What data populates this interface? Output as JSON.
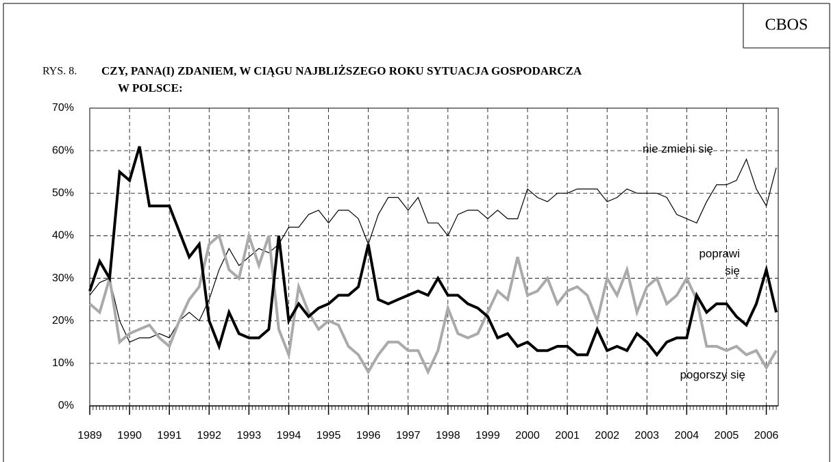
{
  "chart_data": {
    "type": "line",
    "source": "CBOS",
    "figure_label": "RYS. 8.",
    "title": [
      "CZY, PANA(I) ZDANIEM, W CIĄGU NAJBLIŻSZEGO ROKU SYTUACJA GOSPODARCZA",
      "W POLSCE:"
    ],
    "x": [
      1989.0,
      1989.25,
      1989.5,
      1989.75,
      1990.0,
      1990.25,
      1990.5,
      1990.75,
      1991.0,
      1991.25,
      1991.5,
      1991.75,
      1992.0,
      1992.25,
      1992.5,
      1992.75,
      1993.0,
      1993.25,
      1993.5,
      1993.75,
      1994.0,
      1994.25,
      1994.5,
      1994.75,
      1995.0,
      1995.25,
      1995.5,
      1995.75,
      1996.0,
      1996.25,
      1996.5,
      1996.75,
      1997.0,
      1997.25,
      1997.5,
      1997.75,
      1998.0,
      1998.25,
      1998.5,
      1998.75,
      1999.0,
      1999.25,
      1999.5,
      1999.75,
      2000.0,
      2000.25,
      2000.5,
      2000.75,
      2001.0,
      2001.25,
      2001.5,
      2001.75,
      2002.0,
      2002.25,
      2002.5,
      2002.75,
      2003.0,
      2003.25,
      2003.5,
      2003.75,
      2004.0,
      2004.25,
      2004.5,
      2004.75,
      2005.0,
      2005.25,
      2005.5,
      2005.75,
      2006.0,
      2006.25
    ],
    "series": [
      {
        "name": "nie zmieni się",
        "color": "#000000",
        "values": [
          26,
          29,
          30,
          20,
          15,
          16,
          16,
          17,
          16,
          20,
          22,
          20,
          25,
          32,
          37,
          33,
          35,
          37,
          36,
          38,
          42,
          42,
          45,
          46,
          43,
          46,
          46,
          44,
          38,
          45,
          49,
          49,
          46,
          49,
          43,
          43,
          40,
          45,
          46,
          46,
          44,
          46,
          44,
          44,
          51,
          49,
          48,
          50,
          50,
          51,
          51,
          51,
          48,
          49,
          51,
          50,
          50,
          50,
          49,
          45,
          44,
          43,
          48,
          52,
          52,
          53,
          58,
          51,
          47,
          56
        ]
      },
      {
        "name": "pogorszy się",
        "color": "#aaaaaa",
        "values": [
          24,
          22,
          30,
          15,
          17,
          18,
          19,
          16,
          14,
          20,
          25,
          28,
          38,
          40,
          32,
          30,
          40,
          33,
          40,
          18,
          12,
          28,
          22,
          18,
          20,
          19,
          14,
          12,
          8,
          12,
          15,
          15,
          13,
          13,
          8,
          13,
          23,
          17,
          16,
          17,
          22,
          27,
          25,
          35,
          26,
          27,
          30,
          24,
          27,
          28,
          26,
          20,
          30,
          26,
          32,
          22,
          28,
          30,
          24,
          26,
          30,
          25,
          14,
          14,
          13,
          14,
          12,
          13,
          9,
          13
        ]
      },
      {
        "name": "poprawi się",
        "color": "#000000",
        "values": [
          27,
          34,
          30,
          55,
          53,
          61,
          47,
          47,
          47,
          41,
          35,
          38,
          20,
          14,
          22,
          17,
          16,
          16,
          18,
          40,
          20,
          24,
          21,
          23,
          24,
          26,
          26,
          28,
          38,
          25,
          24,
          25,
          26,
          27,
          26,
          30,
          26,
          26,
          24,
          23,
          21,
          16,
          17,
          14,
          15,
          13,
          13,
          14,
          14,
          12,
          12,
          18,
          13,
          14,
          13,
          17,
          15,
          12,
          15,
          16,
          16,
          26,
          22,
          24,
          24,
          21,
          19,
          24,
          32,
          22
        ]
      }
    ],
    "xlim": [
      1989,
      2006.3
    ],
    "xticks": [
      1989,
      1990,
      1991,
      1992,
      1993,
      1994,
      1995,
      1996,
      1997,
      1998,
      1999,
      2000,
      2001,
      2002,
      2003,
      2004,
      2005,
      2006
    ],
    "ylim": [
      0,
      70
    ],
    "yticks": [
      {
        "value": 0,
        "label": "0%"
      },
      {
        "value": 10,
        "label": "10%"
      },
      {
        "value": 20,
        "label": "20%"
      },
      {
        "value": 30,
        "label": "30%"
      },
      {
        "value": 40,
        "label": "40%"
      },
      {
        "value": 50,
        "label": "50%"
      },
      {
        "value": 60,
        "label": "60%"
      },
      {
        "value": 70,
        "label": "70%"
      }
    ],
    "grid": true
  }
}
